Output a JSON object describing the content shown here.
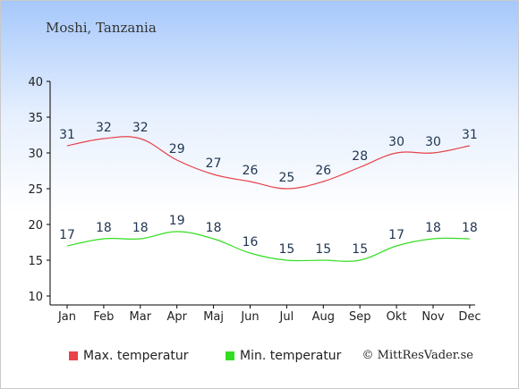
{
  "location_title": "Moshi, Tanzania",
  "copyright": "© MittResVader.se",
  "chart_data": {
    "type": "line",
    "categories": [
      "Jan",
      "Feb",
      "Mar",
      "Apr",
      "Maj",
      "Jun",
      "Jul",
      "Aug",
      "Sep",
      "Okt",
      "Nov",
      "Dec"
    ],
    "series": [
      {
        "name": "Max. temperatur",
        "color": "#e8424a",
        "values": [
          31,
          32,
          32,
          29,
          27,
          26,
          25,
          26,
          28,
          30,
          30,
          31
        ]
      },
      {
        "name": "Min. temperatur",
        "color": "#33dd22",
        "values": [
          17,
          18,
          18,
          19,
          18,
          16,
          15,
          15,
          15,
          17,
          18,
          18
        ]
      }
    ],
    "ylim": [
      10,
      40
    ],
    "yticks": [
      10,
      15,
      20,
      25,
      30,
      35,
      40
    ],
    "grid": false,
    "legend": "bottom-left"
  }
}
